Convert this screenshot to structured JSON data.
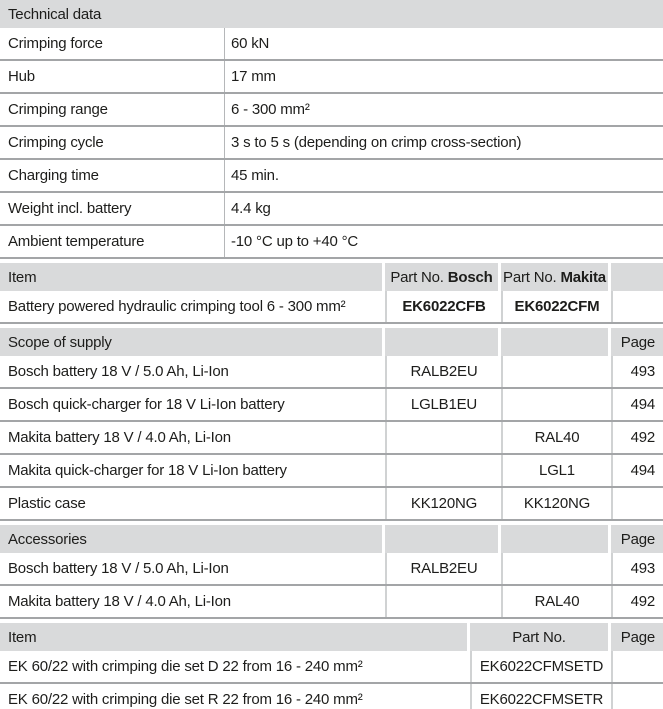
{
  "colors": {
    "header_bg": "#d9dadb",
    "separator": "#a3a5a7",
    "divider": "#d0d2d3",
    "text": "#1d1d1b"
  },
  "technical": {
    "title": "Technical data",
    "rows": [
      {
        "label": "Crimping force",
        "value": "60 kN"
      },
      {
        "label": "Hub",
        "value": "17 mm"
      },
      {
        "label": "Crimping range",
        "value": "6 - 300 mm²"
      },
      {
        "label": "Crimping cycle",
        "value": "3 s to 5 s (depending on crimp cross-section)"
      },
      {
        "label": "Charging time",
        "value": "45 min."
      },
      {
        "label": "Weight incl. battery",
        "value": "4.4 kg"
      },
      {
        "label": "Ambient temperature",
        "value": "-10 °C up to +40 °C"
      }
    ]
  },
  "item_section": {
    "header": {
      "item": "Item",
      "part_no_label": "Part No.",
      "bosch": "Bosch",
      "makita": "Makita"
    },
    "row": {
      "item": "Battery powered hydraulic crimping tool 6 - 300 mm²",
      "bosch": "EK6022CFB",
      "makita": "EK6022CFM"
    }
  },
  "scope_of_supply": {
    "title": "Scope of supply",
    "page_label": "Page",
    "rows": [
      {
        "item": "Bosch battery 18 V / 5.0 Ah, Li-Ion",
        "bosch": "RALB2EU",
        "makita": "",
        "page": "493"
      },
      {
        "item": "Bosch quick-charger for 18 V Li-Ion battery",
        "bosch": "LGLB1EU",
        "makita": "",
        "page": "494"
      },
      {
        "item": "Makita battery 18 V / 4.0 Ah, Li-Ion",
        "bosch": "",
        "makita": "RAL40",
        "page": "492"
      },
      {
        "item": "Makita quick-charger for 18 V Li-Ion battery",
        "bosch": "",
        "makita": "LGL1",
        "page": "494"
      },
      {
        "item": "Plastic case",
        "bosch": "KK120NG",
        "makita": "KK120NG",
        "page": ""
      }
    ]
  },
  "accessories": {
    "title": "Accessories",
    "page_label": "Page",
    "rows": [
      {
        "item": "Bosch battery 18 V / 5.0 Ah, Li-Ion",
        "bosch": "RALB2EU",
        "makita": "",
        "page": "493"
      },
      {
        "item": "Makita battery 18 V / 4.0 Ah, Li-Ion",
        "bosch": "",
        "makita": "RAL40",
        "page": "492"
      }
    ]
  },
  "die_sets": {
    "header": {
      "item": "Item",
      "part_no": "Part No.",
      "page": "Page"
    },
    "rows": [
      {
        "item": "EK 60/22 with crimping die set D 22 from 16 - 240 mm²",
        "part_no": "EK6022CFMSETD",
        "page": ""
      },
      {
        "item": "EK 60/22 with crimping die set R 22 from 16 - 240 mm²",
        "part_no": "EK6022CFMSETR",
        "page": ""
      }
    ]
  }
}
